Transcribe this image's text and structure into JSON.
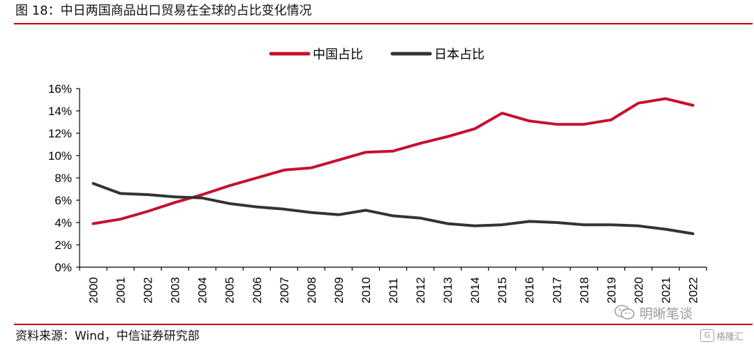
{
  "figure": {
    "title": "图 18：中日两国商品出口贸易在全球的占比变化情况",
    "source": "资料来源：Wind，中信证券研究部",
    "watermark_text": "明晰笔谈",
    "watermark_small_text": "格隆汇",
    "watermark_small_badge": "G"
  },
  "colors": {
    "title_rule": "#c00000",
    "china": "#c8102e",
    "japan": "#333333"
  },
  "chart_data": {
    "type": "line",
    "title": "",
    "xlabel": "",
    "ylabel": "",
    "x": [
      "2000",
      "2001",
      "2002",
      "2003",
      "2004",
      "2005",
      "2006",
      "2007",
      "2008",
      "2009",
      "2010",
      "2011",
      "2012",
      "2013",
      "2014",
      "2015",
      "2016",
      "2017",
      "2018",
      "2019",
      "2020",
      "2021",
      "2022"
    ],
    "ylim": [
      0,
      16
    ],
    "y_ticks": [
      "0%",
      "2%",
      "4%",
      "6%",
      "8%",
      "10%",
      "12%",
      "14%",
      "16%"
    ],
    "y_tick_values": [
      0,
      2,
      4,
      6,
      8,
      10,
      12,
      14,
      16
    ],
    "legend_position": "top-center",
    "grid": false,
    "series": [
      {
        "name": "中国占比",
        "color": "#c8102e",
        "values": [
          3.9,
          4.3,
          5.0,
          5.8,
          6.5,
          7.3,
          8.0,
          8.7,
          8.9,
          9.6,
          10.3,
          10.4,
          11.1,
          11.7,
          12.4,
          13.8,
          13.1,
          12.8,
          12.8,
          13.2,
          14.7,
          15.1,
          14.5
        ]
      },
      {
        "name": "日本占比",
        "color": "#333333",
        "values": [
          7.5,
          6.6,
          6.5,
          6.3,
          6.2,
          5.7,
          5.4,
          5.2,
          4.9,
          4.7,
          5.1,
          4.6,
          4.4,
          3.9,
          3.7,
          3.8,
          4.1,
          4.0,
          3.8,
          3.8,
          3.7,
          3.4,
          3.0
        ]
      }
    ]
  }
}
